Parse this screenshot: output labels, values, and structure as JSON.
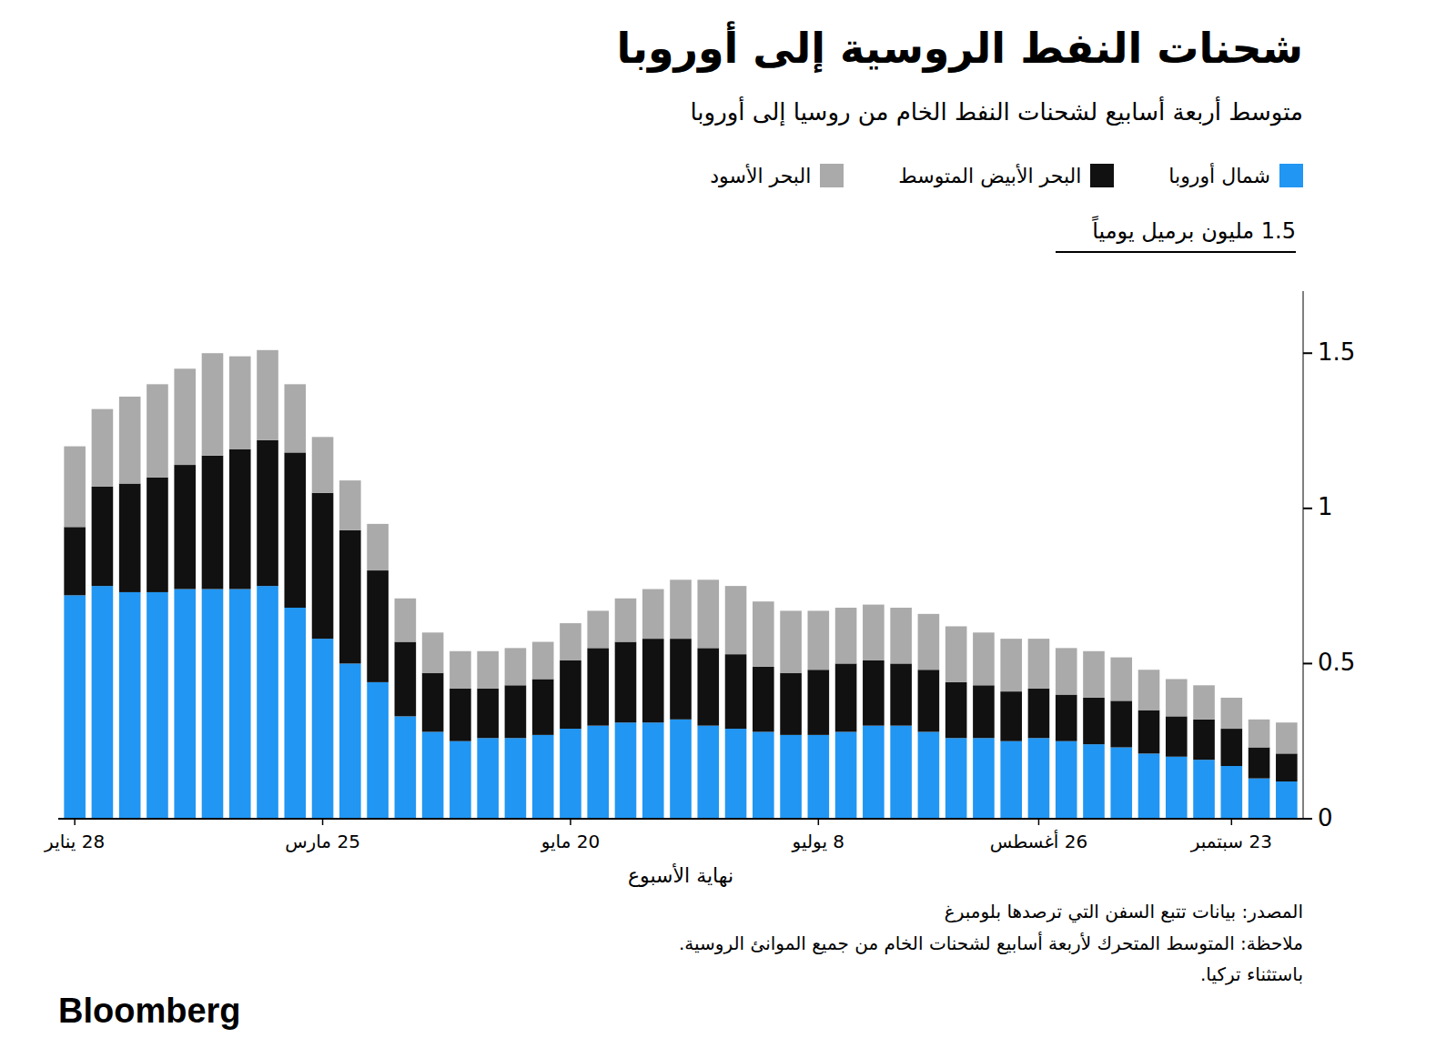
{
  "chart_data": {
    "type": "bar",
    "stacked": true,
    "title": "شحنات النفط الروسية إلى أوروبا",
    "subtitle": "متوسط أربعة أسابيع لشحنات النفط الخام من روسيا إلى أوروبا",
    "ylabel": "1.5 مليون برميل يومياً",
    "xlabel": "نهاية الأسبوع",
    "source": "المصدر: بيانات تتبع السفن التي ترصدها بلومبرغ",
    "notes": [
      "ملاحظة: المتوسط المتحرك لأربعة أسابيع لشحنات الخام من جميع الموانئ الروسية.",
      "باستثناء تركيا."
    ],
    "credit": "Bloomberg",
    "legend": "top",
    "ylim": [
      0,
      1.7
    ],
    "yticks": [
      0,
      0.5,
      1,
      1.5
    ],
    "categories": [
      "28 يناير",
      null,
      null,
      null,
      null,
      null,
      null,
      null,
      null,
      "25 مارس",
      null,
      null,
      null,
      null,
      null,
      null,
      null,
      null,
      "20 مايو",
      null,
      null,
      null,
      null,
      null,
      null,
      null,
      null,
      "8 يوليو",
      null,
      null,
      null,
      null,
      null,
      null,
      null,
      "26 أغسطس",
      null,
      null,
      null,
      null,
      null,
      null,
      "23 سبتمبر",
      null,
      null
    ],
    "series": [
      {
        "name": "شمال أوروبا",
        "color": "#2196F3",
        "values": [
          0.72,
          0.75,
          0.73,
          0.73,
          0.74,
          0.74,
          0.74,
          0.75,
          0.68,
          0.58,
          0.5,
          0.44,
          0.33,
          0.28,
          0.25,
          0.26,
          0.26,
          0.27,
          0.29,
          0.3,
          0.31,
          0.31,
          0.32,
          0.3,
          0.29,
          0.28,
          0.27,
          0.27,
          0.28,
          0.3,
          0.3,
          0.28,
          0.26,
          0.26,
          0.25,
          0.26,
          0.25,
          0.24,
          0.23,
          0.21,
          0.2,
          0.19,
          0.17,
          0.13,
          0.12
        ]
      },
      {
        "name": "البحر الأبيض المتوسط",
        "color": "#111111",
        "values": [
          0.22,
          0.32,
          0.35,
          0.37,
          0.4,
          0.43,
          0.45,
          0.47,
          0.5,
          0.47,
          0.43,
          0.36,
          0.24,
          0.19,
          0.17,
          0.16,
          0.17,
          0.18,
          0.22,
          0.25,
          0.26,
          0.27,
          0.26,
          0.25,
          0.24,
          0.21,
          0.2,
          0.21,
          0.22,
          0.21,
          0.2,
          0.2,
          0.18,
          0.17,
          0.16,
          0.16,
          0.15,
          0.15,
          0.15,
          0.14,
          0.13,
          0.13,
          0.12,
          0.1,
          0.09
        ]
      },
      {
        "name": "البحر الأسود",
        "color": "#aaaaaa",
        "values": [
          0.26,
          0.25,
          0.28,
          0.3,
          0.31,
          0.33,
          0.3,
          0.29,
          0.22,
          0.18,
          0.16,
          0.15,
          0.14,
          0.13,
          0.12,
          0.12,
          0.12,
          0.12,
          0.12,
          0.12,
          0.14,
          0.16,
          0.19,
          0.22,
          0.22,
          0.21,
          0.2,
          0.19,
          0.18,
          0.18,
          0.18,
          0.18,
          0.18,
          0.17,
          0.17,
          0.16,
          0.15,
          0.15,
          0.14,
          0.13,
          0.12,
          0.11,
          0.1,
          0.09,
          0.1
        ]
      }
    ]
  }
}
